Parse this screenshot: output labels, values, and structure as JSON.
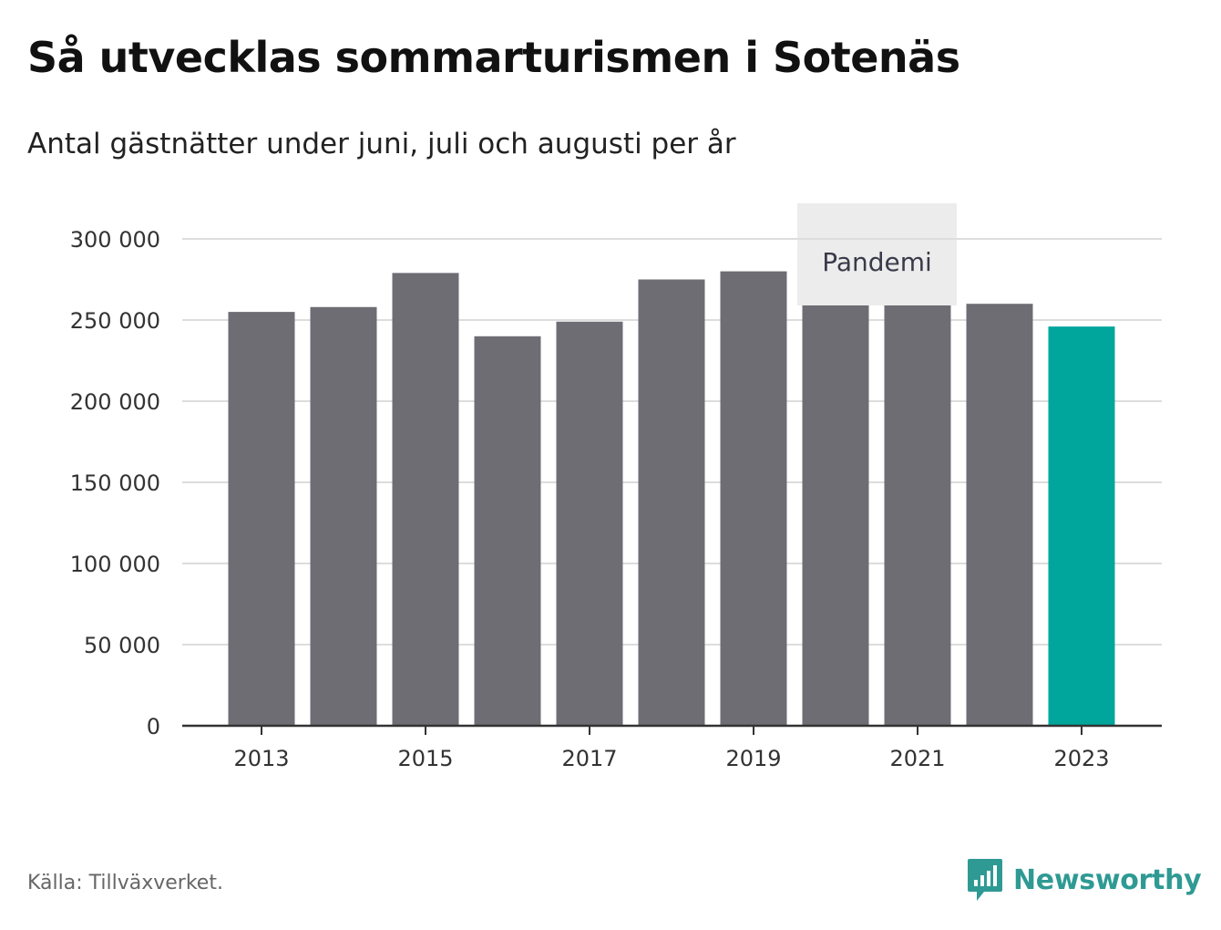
{
  "header": {
    "title": "Så utvecklas sommarturismen i Sotenäs",
    "subtitle": "Antal gästnätter under juni, juli och augusti per år"
  },
  "footer": {
    "source": "Källa: Tillväxverket.",
    "brand": "Newsworthy"
  },
  "colors": {
    "bar": "#6e6d74",
    "highlight": "#00a69c",
    "band": "#ececec",
    "grid": "#dddddd",
    "axis": "#333333",
    "brand": "#2e9a93"
  },
  "chart_data": {
    "type": "bar",
    "title": "Så utvecklas sommarturismen i Sotenäs",
    "subtitle": "Antal gästnätter under juni, juli och augusti per år",
    "xlabel": "",
    "ylabel": "",
    "categories": [
      "2013",
      "2014",
      "2015",
      "2016",
      "2017",
      "2018",
      "2019",
      "2020",
      "2021",
      "2022",
      "2023"
    ],
    "values": [
      255000,
      258000,
      279000,
      240000,
      249000,
      275000,
      280000,
      259000,
      259000,
      260000,
      246000
    ],
    "highlight_index": 10,
    "x_tick_labels": [
      "2013",
      "2015",
      "2017",
      "2019",
      "2021",
      "2023"
    ],
    "ylim": [
      0,
      300000
    ],
    "y_ticks": [
      0,
      50000,
      100000,
      150000,
      200000,
      250000,
      300000
    ],
    "y_tick_labels": [
      "0",
      "50 000",
      "100 000",
      "150 000",
      "200 000",
      "250 000",
      "300 000"
    ],
    "grid": true,
    "legend": "none",
    "annotations": [
      {
        "label": "Pandemi",
        "from": "2020",
        "to": "2021"
      }
    ]
  }
}
